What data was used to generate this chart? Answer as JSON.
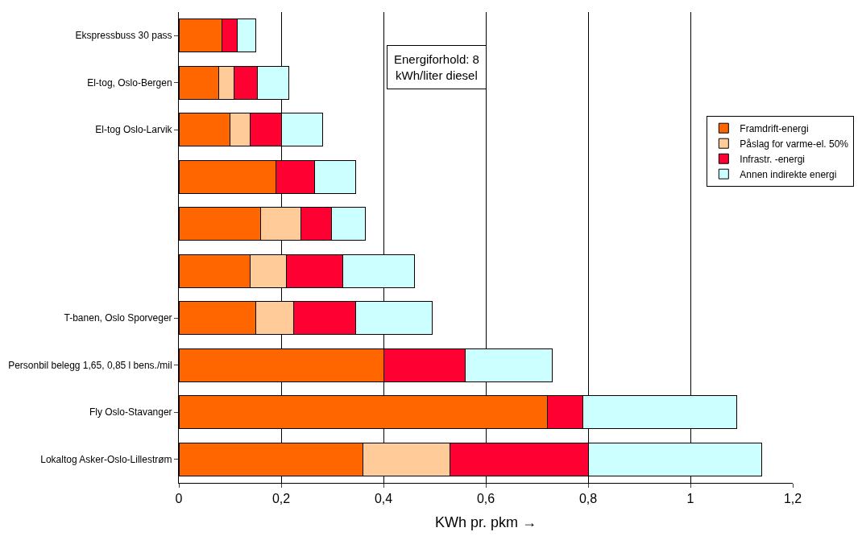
{
  "chart_data": {
    "type": "bar",
    "orientation": "horizontal",
    "stacked": true,
    "categories": [
      "Ekspressbuss 30 pass",
      "El-tog, Oslo-Bergen",
      "El-tog Oslo-Larvik",
      null,
      null,
      null,
      "T-banen, Oslo Sporveger",
      "Personbil belegg 1,65, 0,85 l bens./mil",
      "Fly Oslo-Stavanger",
      "Lokaltog Asker-Oslo-Lillestrøm"
    ],
    "series": [
      {
        "name": "Framdrift-energi",
        "color": "#ff6600",
        "values": [
          0.084,
          0.078,
          0.1,
          0.19,
          0.16,
          0.14,
          0.15,
          0.4,
          0.72,
          0.36
        ]
      },
      {
        "name": "Påslag for varme-el. 50%",
        "color": "#ffcc99",
        "values": [
          null,
          0.03,
          0.04,
          null,
          0.078,
          0.07,
          0.075,
          null,
          null,
          0.17
        ]
      },
      {
        "name": "Infrastr. -energi",
        "color": "#ff0033",
        "values": [
          0.03,
          0.046,
          0.061,
          0.075,
          0.06,
          0.11,
          0.12,
          0.16,
          0.07,
          0.27
        ]
      },
      {
        "name": "Annen indirekte energi",
        "color": "#ccffff",
        "values": [
          0.037,
          0.061,
          0.08,
          0.08,
          0.066,
          0.14,
          0.15,
          0.17,
          0.3,
          0.34
        ]
      }
    ],
    "xlim": [
      0,
      1.2
    ],
    "xticks": [
      0,
      {
        "value": 0.2,
        "label": "0,2"
      },
      {
        "value": 0.4,
        "label": "0,4"
      },
      {
        "value": 0.6,
        "label": "0,6"
      },
      {
        "value": 0.8,
        "label": "0,8"
      },
      1,
      {
        "value": 1.2,
        "label": "1,2"
      }
    ],
    "xlabel": "KWh pr. pkm →",
    "annotations": [
      "Energiforhold: 8 kWh/liter diesel"
    ],
    "grid": "x",
    "legend": "right"
  }
}
